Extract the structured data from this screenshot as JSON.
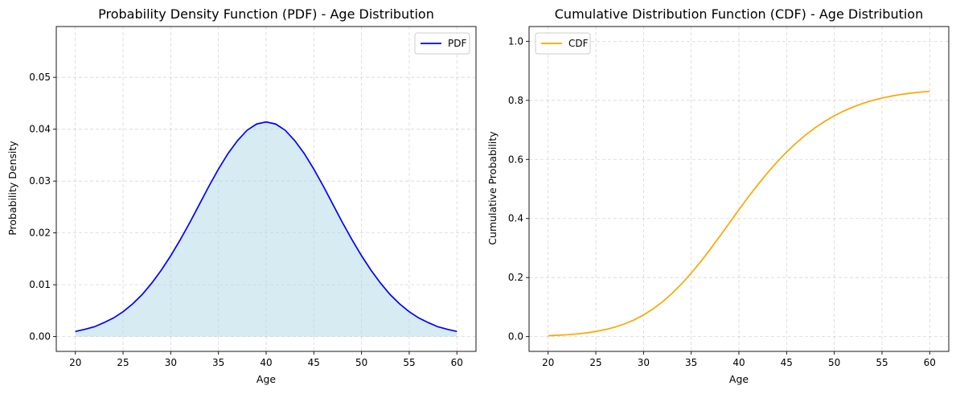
{
  "chart_data": [
    {
      "type": "area",
      "title": "Probability Density Function (PDF) - Age Distribution",
      "xlabel": "Age",
      "ylabel": "Probability Density",
      "xlim": [
        18,
        62
      ],
      "ylim": [
        -0.00285,
        0.0598
      ],
      "xticks": [
        20,
        25,
        30,
        35,
        40,
        45,
        50,
        55,
        60
      ],
      "yticks": [
        0.0,
        0.01,
        0.02,
        0.03,
        0.04,
        0.05
      ],
      "ytick_labels": [
        "0.00",
        "0.01",
        "0.02",
        "0.03",
        "0.04",
        "0.05"
      ],
      "grid": true,
      "legend_position": "upper right",
      "series": [
        {
          "name": "PDF",
          "color": "#0000ff",
          "fill_color": "#add8e6",
          "x": [
            20,
            21,
            22,
            23,
            24,
            25,
            26,
            27,
            28,
            29,
            30,
            31,
            32,
            33,
            34,
            35,
            36,
            37,
            38,
            39,
            40,
            41,
            42,
            43,
            44,
            45,
            46,
            47,
            48,
            49,
            50,
            51,
            52,
            53,
            54,
            55,
            56,
            57,
            58,
            59,
            60
          ],
          "values": [
            0.001,
            0.0014,
            0.0019,
            0.0027,
            0.0036,
            0.0048,
            0.0063,
            0.0081,
            0.0103,
            0.0128,
            0.0156,
            0.0187,
            0.022,
            0.0255,
            0.029,
            0.0323,
            0.0353,
            0.0378,
            0.0398,
            0.041,
            0.0414,
            0.041,
            0.0398,
            0.0378,
            0.0353,
            0.0323,
            0.029,
            0.0255,
            0.022,
            0.0187,
            0.0156,
            0.0128,
            0.0103,
            0.0081,
            0.0063,
            0.0048,
            0.0036,
            0.0027,
            0.0019,
            0.0014,
            0.001
          ]
        }
      ]
    },
    {
      "type": "line",
      "title": "Cumulative Distribution Function (CDF) - Age Distribution",
      "xlabel": "Age",
      "ylabel": "Cumulative Probability",
      "xlim": [
        18,
        62
      ],
      "ylim": [
        -0.05,
        1.05
      ],
      "xticks": [
        20,
        25,
        30,
        35,
        40,
        45,
        50,
        55,
        60
      ],
      "yticks": [
        0.0,
        0.2,
        0.4,
        0.6,
        0.8,
        1.0
      ],
      "ytick_labels": [
        "0.0",
        "0.2",
        "0.4",
        "0.6",
        "0.8",
        "1.0"
      ],
      "grid": true,
      "legend_position": "upper left",
      "series": [
        {
          "name": "CDF",
          "color": "#ffa500",
          "x": [
            20,
            21,
            22,
            23,
            24,
            25,
            26,
            27,
            28,
            29,
            30,
            31,
            32,
            33,
            34,
            35,
            36,
            37,
            38,
            39,
            40,
            41,
            42,
            43,
            44,
            45,
            46,
            47,
            48,
            49,
            50,
            51,
            52,
            53,
            54,
            55,
            56,
            57,
            58,
            59,
            60
          ],
          "values": [
            0.003,
            0.0044,
            0.0063,
            0.009,
            0.0126,
            0.0174,
            0.0238,
            0.0322,
            0.0429,
            0.0564,
            0.0733,
            0.0938,
            0.1181,
            0.1465,
            0.1788,
            0.2148,
            0.2541,
            0.296,
            0.3398,
            0.3846,
            0.4295,
            0.4735,
            0.5152,
            0.5547,
            0.5913,
            0.625,
            0.6556,
            0.6831,
            0.7075,
            0.729,
            0.7478,
            0.764,
            0.7779,
            0.7897,
            0.7996,
            0.8078,
            0.8145,
            0.82,
            0.8244,
            0.8279,
            0.8307
          ]
        }
      ]
    }
  ]
}
